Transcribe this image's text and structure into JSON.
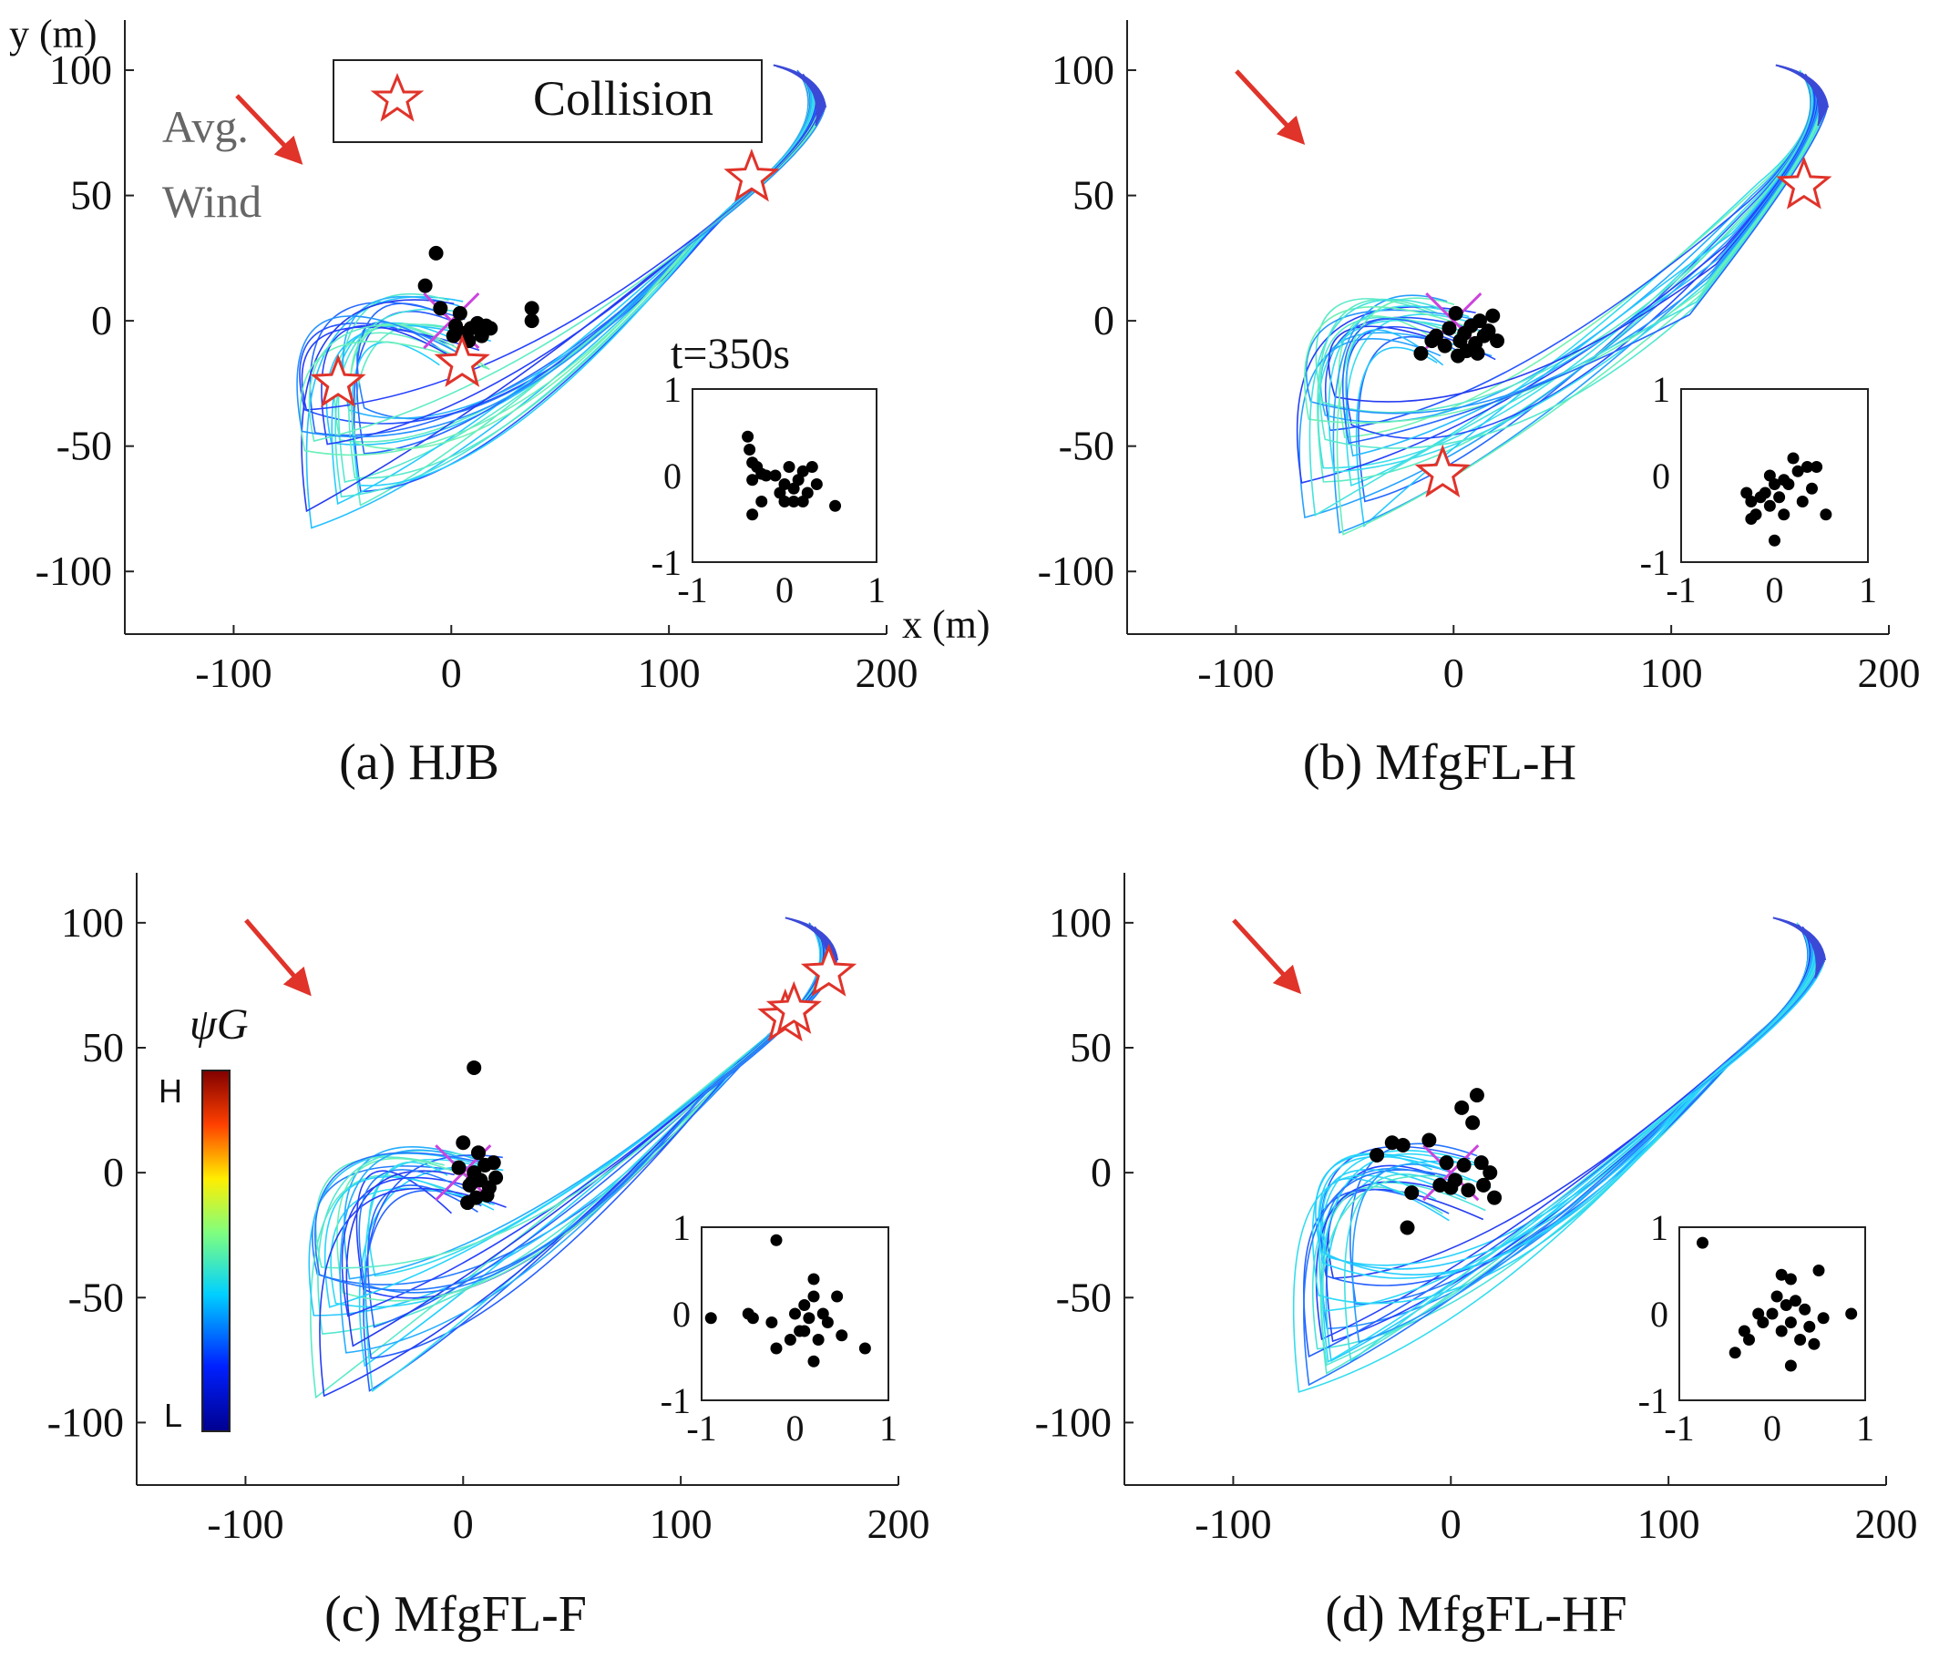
{
  "figure": {
    "legend_label": "Collision",
    "wind_label_line1": "Avg.",
    "wind_label_line2": "Wind",
    "inset_time_label": "t=350s",
    "colorbar_label": "ψG",
    "colorbar_high": "H",
    "colorbar_low": "L"
  },
  "colors": {
    "collision": "#e0332a",
    "wind_arrow": "#e0332a",
    "target_cross": "#cc44dd",
    "agent": "#000000"
  },
  "chart_data": [
    {
      "type": "scatter",
      "panel": "a",
      "caption": "(a) HJB",
      "xlabel": "x (m)",
      "ylabel": "y (m)",
      "xlim": [
        -150,
        200
      ],
      "ylim": [
        -125,
        120
      ],
      "xticks": [
        -100,
        0,
        100,
        200
      ],
      "yticks": [
        -100,
        -50,
        0,
        50,
        100
      ],
      "xtick_labels": [
        "-100",
        "0",
        "100",
        "200"
      ],
      "ytick_labels": [
        "-100",
        "-50",
        "0",
        "50",
        "100"
      ],
      "collisions": [
        [
          138,
          57
        ],
        [
          5,
          -17
        ],
        [
          -52,
          -25
        ]
      ],
      "agents": [
        [
          -7,
          27
        ],
        [
          -12,
          14
        ],
        [
          -5,
          5
        ],
        [
          2,
          -2
        ],
        [
          6,
          -5
        ],
        [
          9,
          -3
        ],
        [
          12,
          -1
        ],
        [
          16,
          -2
        ],
        [
          18,
          -3
        ],
        [
          37,
          5
        ],
        [
          37,
          0
        ],
        [
          4,
          3
        ],
        [
          8,
          -8
        ],
        [
          1,
          -6
        ],
        [
          14,
          -6
        ]
      ],
      "inset": {
        "xlim": [
          -1,
          1
        ],
        "ylim": [
          -1,
          1
        ],
        "xtick_labels": [
          "-1",
          "0",
          "1"
        ],
        "ytick_labels": [
          "-1",
          "0",
          "1"
        ],
        "points": [
          [
            -0.4,
            0.45
          ],
          [
            -0.38,
            0.3
          ],
          [
            -0.35,
            0.15
          ],
          [
            -0.3,
            0.1
          ],
          [
            -0.25,
            0.02
          ],
          [
            -0.35,
            -0.05
          ],
          [
            -0.2,
            0.0
          ],
          [
            -0.1,
            0.0
          ],
          [
            0.0,
            -0.1
          ],
          [
            0.05,
            0.1
          ],
          [
            0.1,
            -0.15
          ],
          [
            0.15,
            -0.05
          ],
          [
            0.2,
            0.05
          ],
          [
            0.25,
            -0.2
          ],
          [
            0.3,
            0.1
          ],
          [
            0.35,
            -0.1
          ],
          [
            0.0,
            -0.3
          ],
          [
            0.1,
            -0.3
          ],
          [
            -0.05,
            -0.2
          ],
          [
            0.55,
            -0.35
          ],
          [
            -0.35,
            -0.45
          ],
          [
            -0.25,
            -0.3
          ],
          [
            0.2,
            -0.3
          ]
        ]
      }
    },
    {
      "type": "scatter",
      "panel": "b",
      "caption": "(b) MfgFL-H",
      "xlabel": "",
      "ylabel": "",
      "xlim": [
        -150,
        200
      ],
      "ylim": [
        -125,
        120
      ],
      "xticks": [
        -100,
        0,
        100,
        200
      ],
      "yticks": [
        -100,
        -50,
        0,
        50,
        100
      ],
      "xtick_labels": [
        "-100",
        "0",
        "100",
        "200"
      ],
      "ytick_labels": [
        "-100",
        "-50",
        "0",
        "50",
        "100"
      ],
      "collisions": [
        [
          161,
          54
        ],
        [
          -5,
          -61
        ]
      ],
      "agents": [
        [
          -15,
          -13
        ],
        [
          -8,
          -6
        ],
        [
          -4,
          -10
        ],
        [
          -2,
          -3
        ],
        [
          1,
          3
        ],
        [
          3,
          -8
        ],
        [
          5,
          -5
        ],
        [
          6,
          -12
        ],
        [
          8,
          -2
        ],
        [
          10,
          -9
        ],
        [
          12,
          0
        ],
        [
          14,
          -6
        ],
        [
          16,
          -4
        ],
        [
          18,
          2
        ],
        [
          20,
          -8
        ],
        [
          -10,
          -8
        ],
        [
          2,
          -14
        ],
        [
          11,
          -13
        ]
      ],
      "inset": {
        "xlim": [
          -1,
          1
        ],
        "ylim": [
          -1,
          1
        ],
        "xtick_labels": [
          "-1",
          "0",
          "1"
        ],
        "ytick_labels": [
          "-1",
          "0",
          "1"
        ],
        "points": [
          [
            -0.3,
            -0.2
          ],
          [
            -0.25,
            -0.3
          ],
          [
            -0.2,
            -0.45
          ],
          [
            -0.15,
            -0.25
          ],
          [
            -0.1,
            -0.2
          ],
          [
            -0.05,
            -0.35
          ],
          [
            0.0,
            -0.1
          ],
          [
            0.05,
            -0.25
          ],
          [
            0.1,
            -0.45
          ],
          [
            0.15,
            -0.1
          ],
          [
            0.2,
            0.2
          ],
          [
            0.25,
            0.05
          ],
          [
            0.3,
            -0.3
          ],
          [
            0.35,
            0.1
          ],
          [
            0.4,
            -0.15
          ],
          [
            0.45,
            0.1
          ],
          [
            0.55,
            -0.45
          ],
          [
            0.0,
            -0.75
          ],
          [
            -0.25,
            -0.5
          ],
          [
            0.1,
            -0.05
          ],
          [
            -0.05,
            0.0
          ]
        ]
      }
    },
    {
      "type": "scatter",
      "panel": "c",
      "caption": "(c) MfgFL-F",
      "xlabel": "",
      "ylabel": "",
      "xlim": [
        -150,
        200
      ],
      "ylim": [
        -125,
        120
      ],
      "xticks": [
        -100,
        0,
        100,
        200
      ],
      "yticks": [
        -100,
        -50,
        0,
        50,
        100
      ],
      "xtick_labels": [
        "-100",
        "0",
        "100",
        "200"
      ],
      "ytick_labels": [
        "-100",
        "-50",
        "0",
        "50",
        "100"
      ],
      "collisions": [
        [
          168,
          80
        ],
        [
          148,
          62
        ],
        [
          152,
          65
        ]
      ],
      "agents": [
        [
          5,
          42
        ],
        [
          0,
          12
        ],
        [
          -2,
          2
        ],
        [
          3,
          -5
        ],
        [
          5,
          0
        ],
        [
          6,
          -10
        ],
        [
          8,
          -3
        ],
        [
          10,
          3
        ],
        [
          12,
          -6
        ],
        [
          14,
          4
        ],
        [
          15,
          -2
        ],
        [
          2,
          -12
        ],
        [
          7,
          8
        ],
        [
          11,
          -9
        ],
        [
          4,
          -4
        ]
      ],
      "inset": {
        "xlim": [
          -1,
          1
        ],
        "ylim": [
          -1,
          1
        ],
        "xtick_labels": [
          "-1",
          "0",
          "1"
        ],
        "ytick_labels": [
          "-1",
          "0",
          "1"
        ],
        "points": [
          [
            -0.2,
            0.85
          ],
          [
            -0.9,
            -0.05
          ],
          [
            -0.5,
            0.0
          ],
          [
            -0.45,
            -0.05
          ],
          [
            -0.25,
            -0.1
          ],
          [
            -0.2,
            -0.4
          ],
          [
            -0.05,
            -0.3
          ],
          [
            0.0,
            0.0
          ],
          [
            0.05,
            -0.2
          ],
          [
            0.1,
            0.1
          ],
          [
            0.15,
            -0.05
          ],
          [
            0.2,
            0.4
          ],
          [
            0.2,
            0.2
          ],
          [
            0.25,
            -0.3
          ],
          [
            0.3,
            0.0
          ],
          [
            0.35,
            -0.1
          ],
          [
            0.45,
            0.2
          ],
          [
            0.5,
            -0.25
          ],
          [
            0.75,
            -0.4
          ],
          [
            0.2,
            -0.55
          ],
          [
            0.1,
            -0.2
          ]
        ]
      }
    },
    {
      "type": "scatter",
      "panel": "d",
      "caption": "(d) MfgFL-HF",
      "xlabel": "",
      "ylabel": "",
      "xlim": [
        -150,
        200
      ],
      "ylim": [
        -125,
        120
      ],
      "xticks": [
        -100,
        0,
        100,
        200
      ],
      "yticks": [
        -100,
        -50,
        0,
        50,
        100
      ],
      "xtick_labels": [
        "-100",
        "0",
        "100",
        "200"
      ],
      "ytick_labels": [
        "-100",
        "-50",
        "0",
        "50",
        "100"
      ],
      "collisions": [],
      "agents": [
        [
          -34,
          7
        ],
        [
          -27,
          12
        ],
        [
          -22,
          11
        ],
        [
          -18,
          -8
        ],
        [
          -20,
          -22
        ],
        [
          -10,
          13
        ],
        [
          -5,
          -5
        ],
        [
          -2,
          4
        ],
        [
          2,
          -3
        ],
        [
          6,
          3
        ],
        [
          8,
          -7
        ],
        [
          10,
          20
        ],
        [
          12,
          31
        ],
        [
          14,
          4
        ],
        [
          18,
          0
        ],
        [
          20,
          -10
        ],
        [
          5,
          26
        ],
        [
          0,
          -6
        ],
        [
          15,
          -5
        ]
      ],
      "inset": {
        "xlim": [
          -1,
          1
        ],
        "ylim": [
          -1,
          1
        ],
        "xtick_labels": [
          "-1",
          "0",
          "1"
        ],
        "ytick_labels": [
          "-1",
          "0",
          "1"
        ],
        "points": [
          [
            -0.75,
            0.82
          ],
          [
            -0.3,
            -0.2
          ],
          [
            -0.25,
            -0.3
          ],
          [
            -0.4,
            -0.45
          ],
          [
            -0.1,
            -0.1
          ],
          [
            0.0,
            0.0
          ],
          [
            0.05,
            0.2
          ],
          [
            0.1,
            -0.2
          ],
          [
            0.15,
            0.1
          ],
          [
            0.2,
            0.4
          ],
          [
            0.2,
            -0.1
          ],
          [
            0.25,
            0.15
          ],
          [
            0.3,
            -0.3
          ],
          [
            0.35,
            0.05
          ],
          [
            0.4,
            -0.15
          ],
          [
            0.45,
            -0.35
          ],
          [
            0.5,
            0.5
          ],
          [
            0.55,
            -0.05
          ],
          [
            0.85,
            0.0
          ],
          [
            0.2,
            -0.6
          ],
          [
            -0.15,
            0.0
          ],
          [
            0.1,
            0.45
          ]
        ]
      }
    }
  ]
}
